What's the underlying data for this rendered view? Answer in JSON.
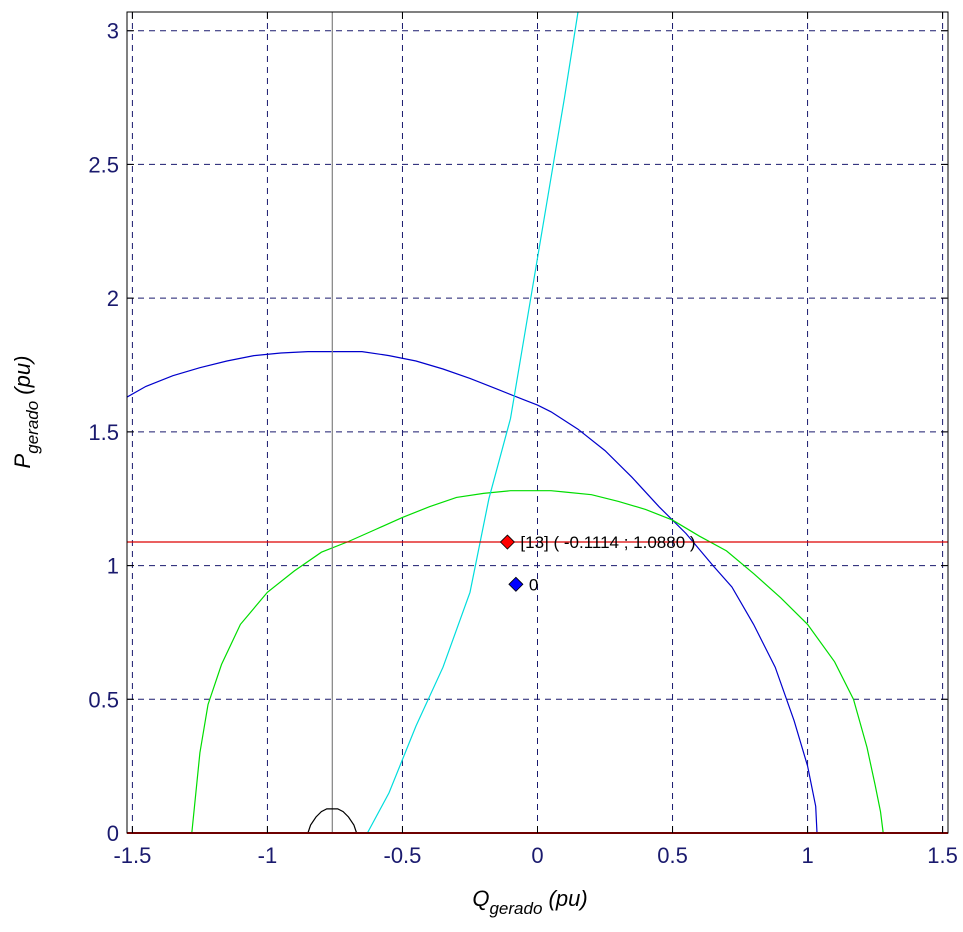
{
  "chart_data": {
    "type": "line",
    "xlabel": {
      "main": "Q",
      "sub": "gerado",
      "unit": " (pu)"
    },
    "ylabel": {
      "main": "P",
      "sub": "gerado",
      "unit": " (pu)"
    },
    "xlim": [
      -1.52,
      1.52
    ],
    "ylim": [
      0,
      3.07
    ],
    "xticks": [
      -1.5,
      -1,
      -0.5,
      0,
      0.5,
      1,
      1.5
    ],
    "xtick_labels": [
      "-1.5",
      "-1",
      "-0.5",
      "0",
      "0.5",
      "1",
      "1.5"
    ],
    "yticks": [
      0,
      0.5,
      1,
      1.5,
      2,
      2.5,
      3
    ],
    "ytick_labels": [
      "0",
      "0.5",
      "1",
      "1.5",
      "2",
      "2.5",
      "3"
    ],
    "grid": true,
    "colors": {
      "blue_curve": "#0000cc",
      "green_curve": "#00dd00",
      "cyan_curve": "#00dddd",
      "red_line": "#dd0000",
      "gray_line": "#808080",
      "black_curve": "#000000",
      "grid": "#1a1a6e",
      "tick_text": "#1a1a6e"
    },
    "series": [
      {
        "key": "blue",
        "color": "#0000cc",
        "x": [
          -1.52,
          -1.45,
          -1.35,
          -1.25,
          -1.15,
          -1.05,
          -0.95,
          -0.85,
          -0.75,
          -0.65,
          -0.55,
          -0.45,
          -0.35,
          -0.25,
          -0.15,
          -0.05,
          0.0,
          0.05,
          0.15,
          0.25,
          0.35,
          0.45,
          0.55,
          0.65,
          0.72,
          0.8,
          0.88,
          0.95,
          1.0,
          1.03,
          1.035
        ],
        "y": [
          1.63,
          1.67,
          1.71,
          1.74,
          1.765,
          1.785,
          1.795,
          1.8,
          1.8,
          1.8,
          1.785,
          1.765,
          1.735,
          1.7,
          1.66,
          1.62,
          1.6,
          1.575,
          1.51,
          1.43,
          1.33,
          1.22,
          1.12,
          1.0,
          0.92,
          0.78,
          0.62,
          0.42,
          0.25,
          0.1,
          0.0
        ]
      },
      {
        "key": "green",
        "color": "#00dd00",
        "x": [
          -1.28,
          -1.27,
          -1.25,
          -1.22,
          -1.17,
          -1.1,
          -1.0,
          -0.9,
          -0.8,
          -0.7,
          -0.6,
          -0.5,
          -0.4,
          -0.3,
          -0.2,
          -0.1,
          -0.05,
          0.0,
          0.05,
          0.1,
          0.2,
          0.3,
          0.4,
          0.5,
          0.6,
          0.7,
          0.8,
          0.9,
          1.0,
          1.1,
          1.17,
          1.22,
          1.25,
          1.27,
          1.28
        ],
        "y": [
          0.0,
          0.1,
          0.3,
          0.48,
          0.63,
          0.78,
          0.9,
          0.98,
          1.05,
          1.09,
          1.135,
          1.18,
          1.22,
          1.255,
          1.27,
          1.28,
          1.28,
          1.28,
          1.28,
          1.275,
          1.265,
          1.24,
          1.21,
          1.17,
          1.11,
          1.055,
          0.97,
          0.88,
          0.78,
          0.64,
          0.5,
          0.32,
          0.18,
          0.08,
          0.0
        ]
      },
      {
        "key": "cyan",
        "color": "#00dddd",
        "x": [
          -0.63,
          -0.55,
          -0.45,
          -0.35,
          -0.25,
          -0.18,
          -0.1,
          -0.05,
          0.0,
          0.05,
          0.1,
          0.15
        ],
        "y": [
          0.0,
          0.15,
          0.4,
          0.62,
          0.9,
          1.25,
          1.55,
          1.85,
          2.15,
          2.45,
          2.75,
          3.07
        ]
      },
      {
        "key": "red",
        "color": "#dd0000",
        "x": [
          -1.52,
          1.52
        ],
        "y": [
          1.088,
          1.088
        ]
      },
      {
        "key": "gray",
        "color": "#808080",
        "x": [
          -0.76,
          -0.76
        ],
        "y": [
          0.0,
          3.07
        ]
      },
      {
        "key": "black",
        "color": "#000000",
        "x": [
          -0.85,
          -0.84,
          -0.82,
          -0.8,
          -0.78,
          -0.76,
          -0.74,
          -0.72,
          -0.7,
          -0.68,
          -0.67
        ],
        "y": [
          0.0,
          0.03,
          0.06,
          0.08,
          0.09,
          0.09,
          0.09,
          0.08,
          0.06,
          0.03,
          0.0
        ]
      },
      {
        "key": "baseline",
        "color": "#dd0000",
        "x": [
          -1.52,
          1.52
        ],
        "y": [
          0.0,
          0.0
        ]
      }
    ],
    "markers": [
      {
        "key": "red-point",
        "x": -0.1114,
        "y": 1.088,
        "color": "#ff0000",
        "label": "[13]  ( -0.1114 ; 1.0880 )"
      },
      {
        "key": "blue-point",
        "x": -0.08,
        "y": 0.93,
        "color": "#0000ff",
        "label": "0"
      }
    ]
  }
}
